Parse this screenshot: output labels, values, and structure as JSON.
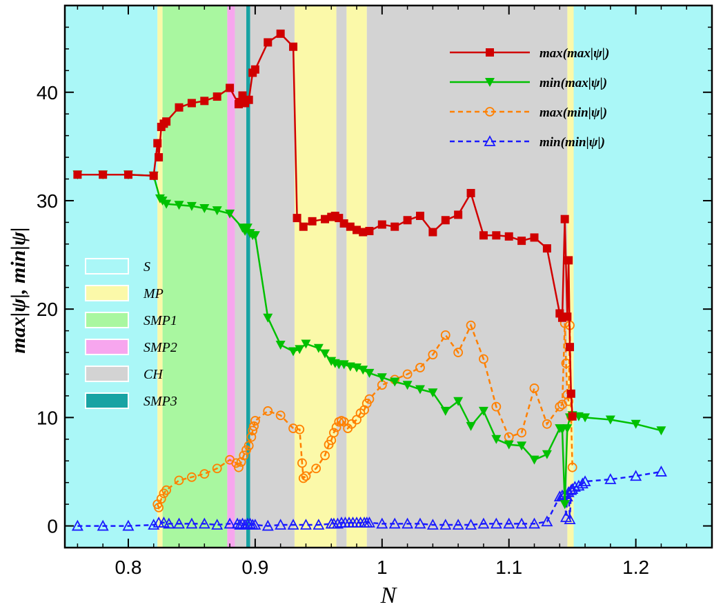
{
  "chart_data": {
    "type": "line",
    "xlabel": "N",
    "ylabel": "max|ψ|,   min|ψ|",
    "xlim": [
      0.75,
      1.26
    ],
    "ylim": [
      -2,
      48
    ],
    "xticks": [
      0.8,
      0.9,
      1,
      1.1,
      1.2
    ],
    "xtick_labels": [
      "0.8",
      "0.9",
      "1",
      "1.1",
      "1.2"
    ],
    "yticks": [
      0,
      10,
      20,
      30,
      40
    ],
    "ytick_labels": [
      "0",
      "10",
      "20",
      "30",
      "40"
    ],
    "regions": [
      {
        "label": "S",
        "color": "#aaf7f7",
        "ranges": [
          [
            0.75,
            0.823
          ],
          [
            1.151,
            1.26
          ]
        ]
      },
      {
        "label": "MP",
        "color": "#fbf9a9",
        "ranges": [
          [
            0.823,
            0.827
          ],
          [
            0.931,
            0.964
          ],
          [
            0.972,
            0.988
          ],
          [
            1.146,
            1.151
          ]
        ]
      },
      {
        "label": "SMP1",
        "color": "#a9f7a0",
        "ranges": [
          [
            0.827,
            0.878
          ]
        ]
      },
      {
        "label": "SMP2",
        "color": "#f7a6ee",
        "ranges": [
          [
            0.878,
            0.884
          ]
        ]
      },
      {
        "label": "CH",
        "color": "#d3d3d3",
        "ranges": [
          [
            0.884,
            0.931
          ],
          [
            0.964,
            0.972
          ],
          [
            0.988,
            1.146
          ]
        ]
      },
      {
        "label": "SMP3",
        "color": "#18a3a3",
        "ranges": [
          [
            0.893,
            0.896
          ]
        ]
      }
    ],
    "series": [
      {
        "name": "max(max|ψ|)",
        "color": "#d00000",
        "dash": false,
        "marker": "square",
        "x": [
          0.76,
          0.78,
          0.8,
          0.82,
          0.823,
          0.824,
          0.826,
          0.828,
          0.83,
          0.84,
          0.85,
          0.86,
          0.87,
          0.88,
          0.887,
          0.888,
          0.89,
          0.892,
          0.895,
          0.898,
          0.9,
          0.91,
          0.92,
          0.93,
          0.933,
          0.938,
          0.945,
          0.955,
          0.96,
          0.963,
          0.966,
          0.97,
          0.975,
          0.98,
          0.985,
          0.99,
          1.0,
          1.01,
          1.02,
          1.03,
          1.04,
          1.05,
          1.06,
          1.07,
          1.08,
          1.09,
          1.1,
          1.11,
          1.12,
          1.13,
          1.14,
          1.142,
          1.144,
          1.146,
          1.147,
          1.148,
          1.149,
          1.15
        ],
        "y": [
          32.4,
          32.4,
          32.4,
          32.3,
          35.3,
          34.0,
          36.8,
          37.1,
          37.3,
          38.6,
          39.0,
          39.2,
          39.6,
          40.4,
          38.9,
          39.1,
          39.7,
          39.0,
          39.3,
          41.8,
          42.1,
          44.6,
          45.4,
          44.2,
          28.4,
          27.6,
          28.1,
          28.3,
          28.5,
          28.6,
          28.4,
          27.9,
          27.6,
          27.3,
          27.1,
          27.2,
          27.8,
          27.6,
          28.2,
          28.6,
          27.1,
          28.2,
          28.7,
          30.7,
          26.8,
          26.8,
          26.7,
          26.3,
          26.6,
          25.6,
          19.6,
          19.2,
          28.3,
          19.3,
          24.5,
          16.5,
          12.2,
          10.1
        ]
      },
      {
        "name": "min(max|ψ|)",
        "color": "#00c000",
        "dash": false,
        "marker": "triangle-down",
        "x": [
          0.76,
          0.78,
          0.8,
          0.82,
          0.825,
          0.827,
          0.83,
          0.84,
          0.85,
          0.86,
          0.87,
          0.88,
          0.89,
          0.892,
          0.894,
          0.896,
          0.898,
          0.9,
          0.91,
          0.92,
          0.93,
          0.935,
          0.94,
          0.95,
          0.955,
          0.96,
          0.963,
          0.966,
          0.97,
          0.975,
          0.98,
          0.985,
          0.99,
          1.0,
          1.01,
          1.02,
          1.03,
          1.04,
          1.05,
          1.06,
          1.07,
          1.08,
          1.09,
          1.1,
          1.11,
          1.12,
          1.13,
          1.14,
          1.142,
          1.144,
          1.146,
          1.148,
          1.15,
          1.155,
          1.16,
          1.18,
          1.2,
          1.22
        ],
        "y": [
          32.4,
          32.4,
          32.4,
          32.3,
          30.2,
          30.0,
          29.7,
          29.6,
          29.5,
          29.3,
          29.1,
          28.8,
          27.5,
          27.2,
          27.5,
          27.0,
          26.8,
          26.8,
          19.2,
          16.7,
          16.1,
          16.3,
          16.8,
          16.4,
          15.9,
          15.2,
          15.0,
          14.9,
          14.9,
          14.7,
          14.6,
          14.4,
          14.1,
          13.7,
          13.3,
          13.0,
          12.6,
          12.3,
          10.6,
          11.5,
          9.2,
          10.6,
          8.0,
          7.5,
          7.4,
          6.1,
          6.6,
          9.0,
          8.9,
          2.0,
          9.0,
          10.0,
          10.2,
          10.1,
          10.0,
          9.8,
          9.4,
          8.8
        ]
      },
      {
        "name": "max(min|ψ|)",
        "color": "#ff8000",
        "dash": true,
        "marker": "circle",
        "x": [
          0.823,
          0.824,
          0.826,
          0.828,
          0.83,
          0.84,
          0.85,
          0.86,
          0.87,
          0.88,
          0.885,
          0.887,
          0.889,
          0.891,
          0.893,
          0.895,
          0.897,
          0.898,
          0.899,
          0.9,
          0.91,
          0.92,
          0.93,
          0.935,
          0.937,
          0.938,
          0.94,
          0.948,
          0.955,
          0.958,
          0.96,
          0.962,
          0.964,
          0.966,
          0.968,
          0.97,
          0.973,
          0.976,
          0.98,
          0.983,
          0.986,
          0.988,
          0.99,
          1.0,
          1.01,
          1.02,
          1.03,
          1.04,
          1.05,
          1.06,
          1.07,
          1.08,
          1.09,
          1.1,
          1.11,
          1.12,
          1.13,
          1.14,
          1.142,
          1.144,
          1.145,
          1.146,
          1.147,
          1.148,
          1.149,
          1.15
        ],
        "y": [
          2.0,
          1.7,
          2.5,
          3.0,
          3.3,
          4.2,
          4.5,
          4.8,
          5.3,
          6.1,
          5.8,
          5.4,
          5.9,
          6.5,
          7.0,
          7.4,
          8.2,
          8.8,
          9.2,
          9.7,
          10.6,
          10.2,
          9.0,
          8.9,
          5.8,
          4.4,
          4.6,
          5.3,
          6.5,
          7.5,
          7.9,
          8.6,
          9.1,
          9.6,
          9.7,
          9.6,
          9.0,
          9.4,
          9.8,
          10.4,
          10.7,
          11.3,
          11.7,
          13.0,
          13.5,
          14.0,
          14.6,
          15.8,
          17.6,
          16.0,
          18.5,
          15.4,
          11.0,
          8.2,
          8.6,
          12.7,
          9.4,
          11.0,
          11.2,
          18.7,
          15.0,
          12.1,
          11.5,
          18.5,
          10.1,
          5.4
        ]
      },
      {
        "name": "min(min|ψ|)",
        "color": "#1a1aff",
        "dash": true,
        "marker": "triangle-up",
        "x": [
          0.76,
          0.78,
          0.8,
          0.82,
          0.824,
          0.828,
          0.832,
          0.84,
          0.85,
          0.86,
          0.87,
          0.88,
          0.886,
          0.888,
          0.89,
          0.892,
          0.894,
          0.896,
          0.898,
          0.9,
          0.91,
          0.92,
          0.93,
          0.94,
          0.95,
          0.96,
          0.962,
          0.965,
          0.968,
          0.971,
          0.974,
          0.977,
          0.98,
          0.983,
          0.986,
          0.988,
          0.99,
          1.0,
          1.01,
          1.02,
          1.03,
          1.04,
          1.05,
          1.06,
          1.07,
          1.08,
          1.09,
          1.1,
          1.11,
          1.12,
          1.13,
          1.14,
          1.142,
          1.144,
          1.145,
          1.146,
          1.147,
          1.148,
          1.149,
          1.15,
          1.152,
          1.155,
          1.158,
          1.16,
          1.18,
          1.2,
          1.22
        ],
        "y": [
          0.0,
          0.0,
          0.0,
          0.1,
          0.3,
          0.3,
          0.2,
          0.2,
          0.2,
          0.2,
          0.1,
          0.2,
          0.2,
          0.1,
          0.2,
          0.1,
          0.2,
          0.2,
          0.1,
          0.1,
          0.0,
          0.1,
          0.1,
          0.1,
          0.1,
          0.2,
          0.2,
          0.2,
          0.3,
          0.3,
          0.3,
          0.3,
          0.3,
          0.3,
          0.3,
          0.3,
          0.3,
          0.2,
          0.2,
          0.2,
          0.2,
          0.1,
          0.1,
          0.1,
          0.1,
          0.2,
          0.2,
          0.2,
          0.2,
          0.2,
          0.4,
          2.7,
          2.8,
          2.9,
          0.8,
          2.7,
          3.1,
          0.6,
          3.3,
          3.4,
          3.6,
          3.7,
          3.9,
          4.1,
          4.3,
          4.6,
          5.0
        ]
      }
    ],
    "legend": {
      "placement": "top-right"
    },
    "region_legend": {
      "placement": "middle-left"
    }
  }
}
